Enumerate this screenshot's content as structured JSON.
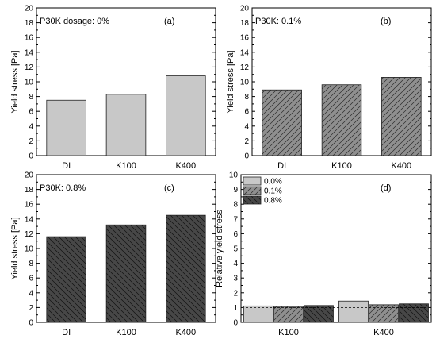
{
  "chart_data": [
    {
      "type": "bar",
      "panel_label": "(a)",
      "annotation": "P30K dosage: 0%",
      "ylabel": "Yield stress [Pa]",
      "ylim": [
        0,
        20
      ],
      "yticks": [
        "0",
        "2",
        "4",
        "6",
        "8",
        "10",
        "12",
        "14",
        "16",
        "18",
        "20"
      ],
      "categories": [
        "DI",
        "K100",
        "K400"
      ],
      "values": [
        7.5,
        8.3,
        10.8
      ],
      "fill": "#c8c8c8",
      "pattern": "none"
    },
    {
      "type": "bar",
      "panel_label": "(b)",
      "annotation": "P30K: 0.1%",
      "ylabel": "Yield stress [Pa]",
      "ylim": [
        0,
        20
      ],
      "yticks": [
        "0",
        "2",
        "4",
        "6",
        "8",
        "10",
        "12",
        "14",
        "16",
        "18",
        "20"
      ],
      "categories": [
        "DI",
        "K100",
        "K400"
      ],
      "values": [
        8.9,
        9.6,
        10.6
      ],
      "fill": "#8f8f8f",
      "pattern": "forward"
    },
    {
      "type": "bar",
      "panel_label": "(c)",
      "annotation": "P30K: 0.8%",
      "ylabel": "Yield stress [Pa]",
      "ylim": [
        0,
        20
      ],
      "yticks": [
        "0",
        "2",
        "4",
        "6",
        "8",
        "10",
        "12",
        "14",
        "16",
        "18",
        "20"
      ],
      "categories": [
        "DI",
        "K100",
        "K400"
      ],
      "values": [
        11.6,
        13.2,
        14.5
      ],
      "fill": "#474747",
      "pattern": "back"
    },
    {
      "type": "bar",
      "panel_label": "(d)",
      "ylabel": "Relative yield stress",
      "ylim": [
        0,
        10
      ],
      "yticks": [
        "0",
        "1",
        "2",
        "3",
        "4",
        "5",
        "6",
        "7",
        "8",
        "9",
        "10"
      ],
      "categories": [
        "K100",
        "K400"
      ],
      "series": [
        {
          "name": "0.0%",
          "values": [
            1.11,
            1.44
          ],
          "fill": "#c8c8c8",
          "pattern": "none"
        },
        {
          "name": "0.1%",
          "values": [
            1.08,
            1.19
          ],
          "fill": "#8f8f8f",
          "pattern": "forward"
        },
        {
          "name": "0.8%",
          "values": [
            1.14,
            1.25
          ],
          "fill": "#474747",
          "pattern": "back"
        }
      ],
      "reference_line": 1.0,
      "legend": "top-left"
    }
  ]
}
